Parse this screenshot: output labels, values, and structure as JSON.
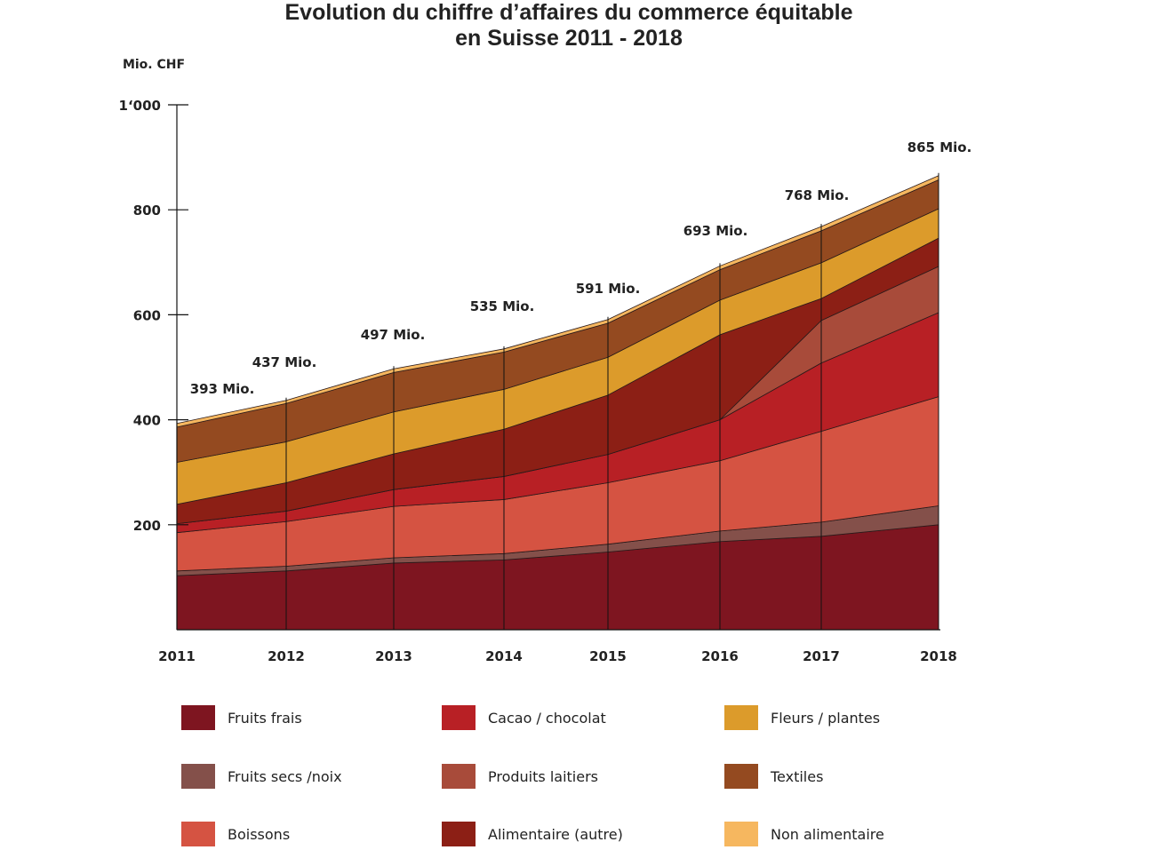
{
  "chart_data": {
    "type": "area",
    "stacked": true,
    "title": "Evolution du chiffre d’affaires du commerce équitable",
    "title_line2": "en Suisse 2011 - 2018",
    "ylabel": "Mio. CHF",
    "xlabel": "",
    "ylim": [
      0,
      1000
    ],
    "yticks": [
      200,
      400,
      600,
      800,
      1000
    ],
    "ytick_labels": [
      "200",
      "400",
      "600",
      "800",
      "1‘000"
    ],
    "x": [
      "2011",
      "2012",
      "2013",
      "2014",
      "2015",
      "2016",
      "2017",
      "2018"
    ],
    "grid": false,
    "legend_position": "bottom",
    "totals": [
      393,
      437,
      497,
      535,
      591,
      693,
      768,
      865
    ],
    "total_labels": [
      "393 Mio.",
      "437 Mio.",
      "497 Mio.",
      "535 Mio.",
      "591 Mio.",
      "693 Mio.",
      "768 Mio.",
      "865 Mio."
    ],
    "series": [
      {
        "name": "Fruits frais",
        "color": "#7e1520",
        "values": [
          103,
          112,
          127,
          133,
          148,
          168,
          178,
          200
        ]
      },
      {
        "name": "Fruits secs /noix",
        "color": "#84504a",
        "values": [
          9,
          9,
          10,
          12,
          15,
          20,
          27,
          36
        ]
      },
      {
        "name": "Boissons",
        "color": "#d55342",
        "values": [
          73,
          85,
          98,
          103,
          117,
          134,
          173,
          208
        ]
      },
      {
        "name": "Cacao / chocolat",
        "color": "#b82025",
        "values": [
          17,
          20,
          32,
          44,
          54,
          78,
          130,
          160
        ]
      },
      {
        "name": "Produits laitiers",
        "color": "#a84b3a",
        "values": [
          0,
          0,
          0,
          0,
          0,
          0,
          81,
          88
        ]
      },
      {
        "name": "Alimentaire (autre)",
        "color": "#8c1f15",
        "values": [
          37,
          54,
          68,
          90,
          113,
          162,
          42,
          54
        ]
      },
      {
        "name": "Fleurs / plantes",
        "color": "#dc9b2b",
        "values": [
          80,
          78,
          80,
          76,
          72,
          66,
          68,
          56
        ]
      },
      {
        "name": "Textiles",
        "color": "#944a20",
        "values": [
          67,
          73,
          75,
          71,
          65,
          58,
          61,
          55
        ]
      },
      {
        "name": "Non alimentaire",
        "color": "#f6b75f",
        "values": [
          7,
          6,
          7,
          6,
          7,
          7,
          8,
          8
        ]
      }
    ]
  }
}
